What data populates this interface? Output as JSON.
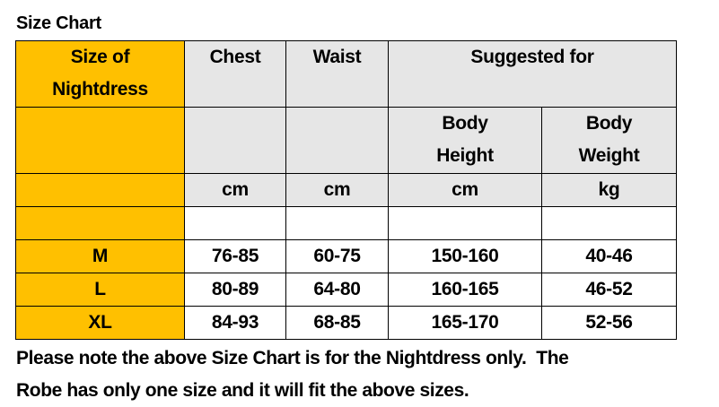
{
  "title": "Size Chart",
  "colors": {
    "size_column": "#FFC000",
    "header": "#E6E6E6"
  },
  "header": {
    "size": [
      "Size of",
      "Nightdress"
    ],
    "chest": "Chest",
    "waist": "Waist",
    "suggested": "Suggested for",
    "height": [
      "Body",
      "Height"
    ],
    "weight": [
      "Body",
      "Weight"
    ]
  },
  "units": {
    "chest": "cm",
    "waist": "cm",
    "height": "cm",
    "weight": "kg"
  },
  "rows": [
    {
      "size": "M",
      "chest": "76-85",
      "waist": "60-75",
      "height": "150-160",
      "weight": "40-46"
    },
    {
      "size": "L",
      "chest": "80-89",
      "waist": "64-80",
      "height": "160-165",
      "weight": "46-52"
    },
    {
      "size": "XL",
      "chest": "84-93",
      "waist": "68-85",
      "height": "165-170",
      "weight": "52-56"
    }
  ],
  "note": [
    "Please note the above Size Chart is for the Nightdress only.  The",
    "Robe has only one size and it will fit the above sizes."
  ]
}
